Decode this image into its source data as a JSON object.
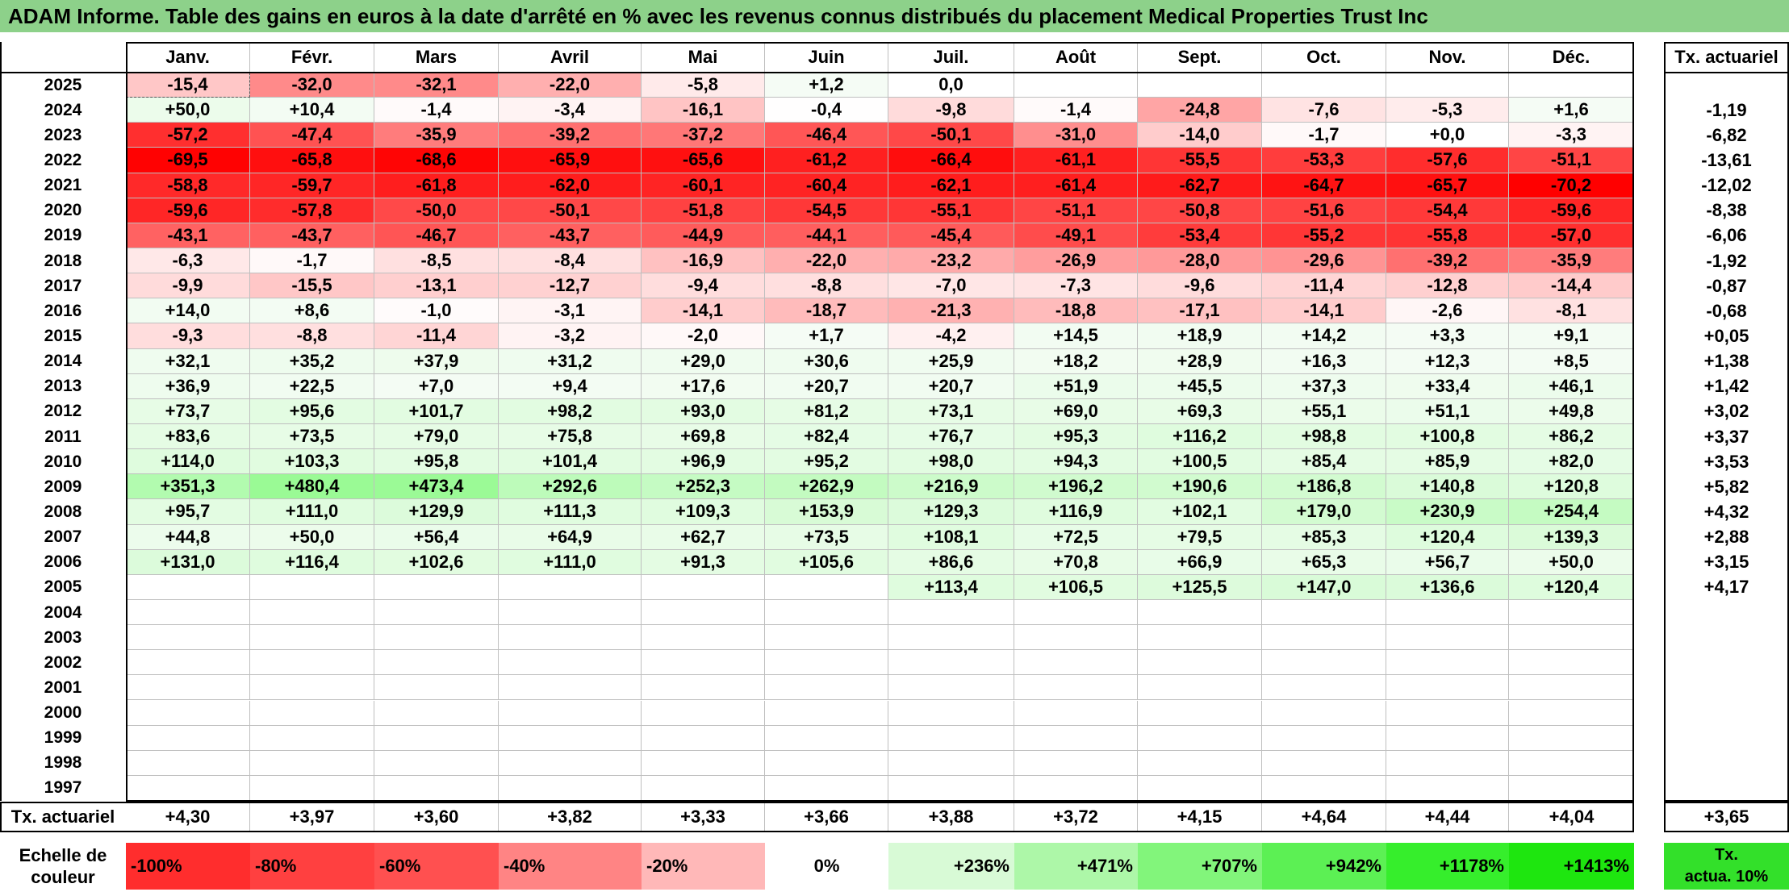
{
  "title": "ADAM Informe. Table des gains en euros à la date d'arrêté en % avec les revenus connus distribués du placement Medical Properties Trust Inc",
  "chart_data": {
    "type": "heatmap",
    "title": "ADAM Informe. Table des gains en euros à la date d'arrêté en % avec les revenus connus distribués du placement Medical Properties Trust Inc",
    "months": [
      "Janv.",
      "Févr.",
      "Mars",
      "Avril",
      "Mai",
      "Juin",
      "Juil.",
      "Août",
      "Sept.",
      "Oct.",
      "Nov.",
      "Déc."
    ],
    "annual_header": "Tx. actuariel",
    "rows": [
      {
        "year": "2025",
        "values": [
          "-15,4",
          "-32,0",
          "-32,1",
          "-22,0",
          "-5,8",
          "+1,2",
          "0,0",
          "",
          "",
          "",
          "",
          ""
        ],
        "rate": ""
      },
      {
        "year": "2024",
        "values": [
          "+50,0",
          "+10,4",
          "-1,4",
          "-3,4",
          "-16,1",
          "-0,4",
          "-9,8",
          "-1,4",
          "-24,8",
          "-7,6",
          "-5,3",
          "+1,6"
        ],
        "rate": "-1,19"
      },
      {
        "year": "2023",
        "values": [
          "-57,2",
          "-47,4",
          "-35,9",
          "-39,2",
          "-37,2",
          "-46,4",
          "-50,1",
          "-31,0",
          "-14,0",
          "-1,7",
          "+0,0",
          "-3,3"
        ],
        "rate": "-6,82"
      },
      {
        "year": "2022",
        "values": [
          "-69,5",
          "-65,8",
          "-68,6",
          "-65,9",
          "-65,6",
          "-61,2",
          "-66,4",
          "-61,1",
          "-55,5",
          "-53,3",
          "-57,6",
          "-51,1"
        ],
        "rate": "-13,61"
      },
      {
        "year": "2021",
        "values": [
          "-58,8",
          "-59,7",
          "-61,8",
          "-62,0",
          "-60,1",
          "-60,4",
          "-62,1",
          "-61,4",
          "-62,7",
          "-64,7",
          "-65,7",
          "-70,2"
        ],
        "rate": "-12,02"
      },
      {
        "year": "2020",
        "values": [
          "-59,6",
          "-57,8",
          "-50,0",
          "-50,1",
          "-51,8",
          "-54,5",
          "-55,1",
          "-51,1",
          "-50,8",
          "-51,6",
          "-54,4",
          "-59,6"
        ],
        "rate": "-8,38"
      },
      {
        "year": "2019",
        "values": [
          "-43,1",
          "-43,7",
          "-46,7",
          "-43,7",
          "-44,9",
          "-44,1",
          "-45,4",
          "-49,1",
          "-53,4",
          "-55,2",
          "-55,8",
          "-57,0"
        ],
        "rate": "-6,06"
      },
      {
        "year": "2018",
        "values": [
          "-6,3",
          "-1,7",
          "-8,5",
          "-8,4",
          "-16,9",
          "-22,0",
          "-23,2",
          "-26,9",
          "-28,0",
          "-29,6",
          "-39,2",
          "-35,9"
        ],
        "rate": "-1,92"
      },
      {
        "year": "2017",
        "values": [
          "-9,9",
          "-15,5",
          "-13,1",
          "-12,7",
          "-9,4",
          "-8,8",
          "-7,0",
          "-7,3",
          "-9,6",
          "-11,4",
          "-12,8",
          "-14,4"
        ],
        "rate": "-0,87"
      },
      {
        "year": "2016",
        "values": [
          "+14,0",
          "+8,6",
          "-1,0",
          "-3,1",
          "-14,1",
          "-18,7",
          "-21,3",
          "-18,8",
          "-17,1",
          "-14,1",
          "-2,6",
          "-8,1"
        ],
        "rate": "-0,68"
      },
      {
        "year": "2015",
        "values": [
          "-9,3",
          "-8,8",
          "-11,4",
          "-3,2",
          "-2,0",
          "+1,7",
          "-4,2",
          "+14,5",
          "+18,9",
          "+14,2",
          "+3,3",
          "+9,1"
        ],
        "rate": "+0,05"
      },
      {
        "year": "2014",
        "values": [
          "+32,1",
          "+35,2",
          "+37,9",
          "+31,2",
          "+29,0",
          "+30,6",
          "+25,9",
          "+18,2",
          "+28,9",
          "+16,3",
          "+12,3",
          "+8,5"
        ],
        "rate": "+1,38"
      },
      {
        "year": "2013",
        "values": [
          "+36,9",
          "+22,5",
          "+7,0",
          "+9,4",
          "+17,6",
          "+20,7",
          "+20,7",
          "+51,9",
          "+45,5",
          "+37,3",
          "+33,4",
          "+46,1"
        ],
        "rate": "+1,42"
      },
      {
        "year": "2012",
        "values": [
          "+73,7",
          "+95,6",
          "+101,7",
          "+98,2",
          "+93,0",
          "+81,2",
          "+73,1",
          "+69,0",
          "+69,3",
          "+55,1",
          "+51,1",
          "+49,8"
        ],
        "rate": "+3,02"
      },
      {
        "year": "2011",
        "values": [
          "+83,6",
          "+73,5",
          "+79,0",
          "+75,8",
          "+69,8",
          "+82,4",
          "+76,7",
          "+95,3",
          "+116,2",
          "+98,8",
          "+100,8",
          "+86,2"
        ],
        "rate": "+3,37"
      },
      {
        "year": "2010",
        "values": [
          "+114,0",
          "+103,3",
          "+95,8",
          "+101,4",
          "+96,9",
          "+95,2",
          "+98,0",
          "+94,3",
          "+100,5",
          "+85,4",
          "+85,9",
          "+82,0"
        ],
        "rate": "+3,53"
      },
      {
        "year": "2009",
        "values": [
          "+351,3",
          "+480,4",
          "+473,4",
          "+292,6",
          "+252,3",
          "+262,9",
          "+216,9",
          "+196,2",
          "+190,6",
          "+186,8",
          "+140,8",
          "+120,8"
        ],
        "rate": "+5,82"
      },
      {
        "year": "2008",
        "values": [
          "+95,7",
          "+111,0",
          "+129,9",
          "+111,3",
          "+109,3",
          "+153,9",
          "+129,3",
          "+116,9",
          "+102,1",
          "+179,0",
          "+230,9",
          "+254,4"
        ],
        "rate": "+4,32"
      },
      {
        "year": "2007",
        "values": [
          "+44,8",
          "+50,0",
          "+56,4",
          "+64,9",
          "+62,7",
          "+73,5",
          "+108,1",
          "+72,5",
          "+79,5",
          "+85,3",
          "+120,4",
          "+139,3"
        ],
        "rate": "+2,88"
      },
      {
        "year": "2006",
        "values": [
          "+131,0",
          "+116,4",
          "+102,6",
          "+111,0",
          "+91,3",
          "+105,6",
          "+86,6",
          "+70,8",
          "+66,9",
          "+65,3",
          "+56,7",
          "+50,0"
        ],
        "rate": "+3,15"
      },
      {
        "year": "2005",
        "values": [
          "",
          "",
          "",
          "",
          "",
          "",
          "+113,4",
          "+106,5",
          "+125,5",
          "+147,0",
          "+136,6",
          "+120,4"
        ],
        "rate": "+4,17"
      },
      {
        "year": "2004",
        "values": [
          "",
          "",
          "",
          "",
          "",
          "",
          "",
          "",
          "",
          "",
          "",
          ""
        ],
        "rate": ""
      },
      {
        "year": "2003",
        "values": [
          "",
          "",
          "",
          "",
          "",
          "",
          "",
          "",
          "",
          "",
          "",
          ""
        ],
        "rate": ""
      },
      {
        "year": "2002",
        "values": [
          "",
          "",
          "",
          "",
          "",
          "",
          "",
          "",
          "",
          "",
          "",
          ""
        ],
        "rate": ""
      },
      {
        "year": "2001",
        "values": [
          "",
          "",
          "",
          "",
          "",
          "",
          "",
          "",
          "",
          "",
          "",
          ""
        ],
        "rate": ""
      },
      {
        "year": "2000",
        "values": [
          "",
          "",
          "",
          "",
          "",
          "",
          "",
          "",
          "",
          "",
          "",
          ""
        ],
        "rate": ""
      },
      {
        "year": "1999",
        "values": [
          "",
          "",
          "",
          "",
          "",
          "",
          "",
          "",
          "",
          "",
          "",
          ""
        ],
        "rate": ""
      },
      {
        "year": "1998",
        "values": [
          "",
          "",
          "",
          "",
          "",
          "",
          "",
          "",
          "",
          "",
          "",
          ""
        ],
        "rate": ""
      },
      {
        "year": "1997",
        "values": [
          "",
          "",
          "",
          "",
          "",
          "",
          "",
          "",
          "",
          "",
          "",
          ""
        ],
        "rate": ""
      }
    ],
    "summary_row": {
      "label": "Tx. actuariel",
      "values": [
        "+4,30",
        "+3,97",
        "+3,60",
        "+3,82",
        "+3,33",
        "+3,66",
        "+3,88",
        "+3,72",
        "+4,15",
        "+4,64",
        "+4,44",
        "+4,04"
      ],
      "total": "+3,65"
    },
    "scale": {
      "label_line1": "Echelle de",
      "label_line2": "couleur",
      "items": [
        {
          "label": "-100%",
          "color": "#ff2d2d",
          "align": "left"
        },
        {
          "label": "-80%",
          "color": "#ff4040",
          "align": "left"
        },
        {
          "label": "-60%",
          "color": "#ff5050",
          "align": "left"
        },
        {
          "label": "-40%",
          "color": "#ff8484",
          "align": "left"
        },
        {
          "label": "-20%",
          "color": "#ffb8b8",
          "align": "left"
        },
        {
          "label": "0%",
          "color": "#ffffff",
          "align": "center"
        },
        {
          "label": "+236%",
          "color": "#d8fad6",
          "align": "right"
        },
        {
          "label": "+471%",
          "color": "#adf7a8",
          "align": "right"
        },
        {
          "label": "+707%",
          "color": "#82f57b",
          "align": "right"
        },
        {
          "label": "+942%",
          "color": "#5cf054",
          "align": "right"
        },
        {
          "label": "+1178%",
          "color": "#36ee2c",
          "align": "right"
        },
        {
          "label": "+1413%",
          "color": "#1ee60f",
          "align": "right"
        }
      ],
      "rate_label_line1": "Tx.",
      "rate_label_line2": "actua. 10%",
      "rate_color": "#33e02a"
    },
    "colors": {
      "title_bar": "#8dd18a",
      "negative_max": "#ff0000",
      "positive_max": "#1ee60f"
    }
  }
}
